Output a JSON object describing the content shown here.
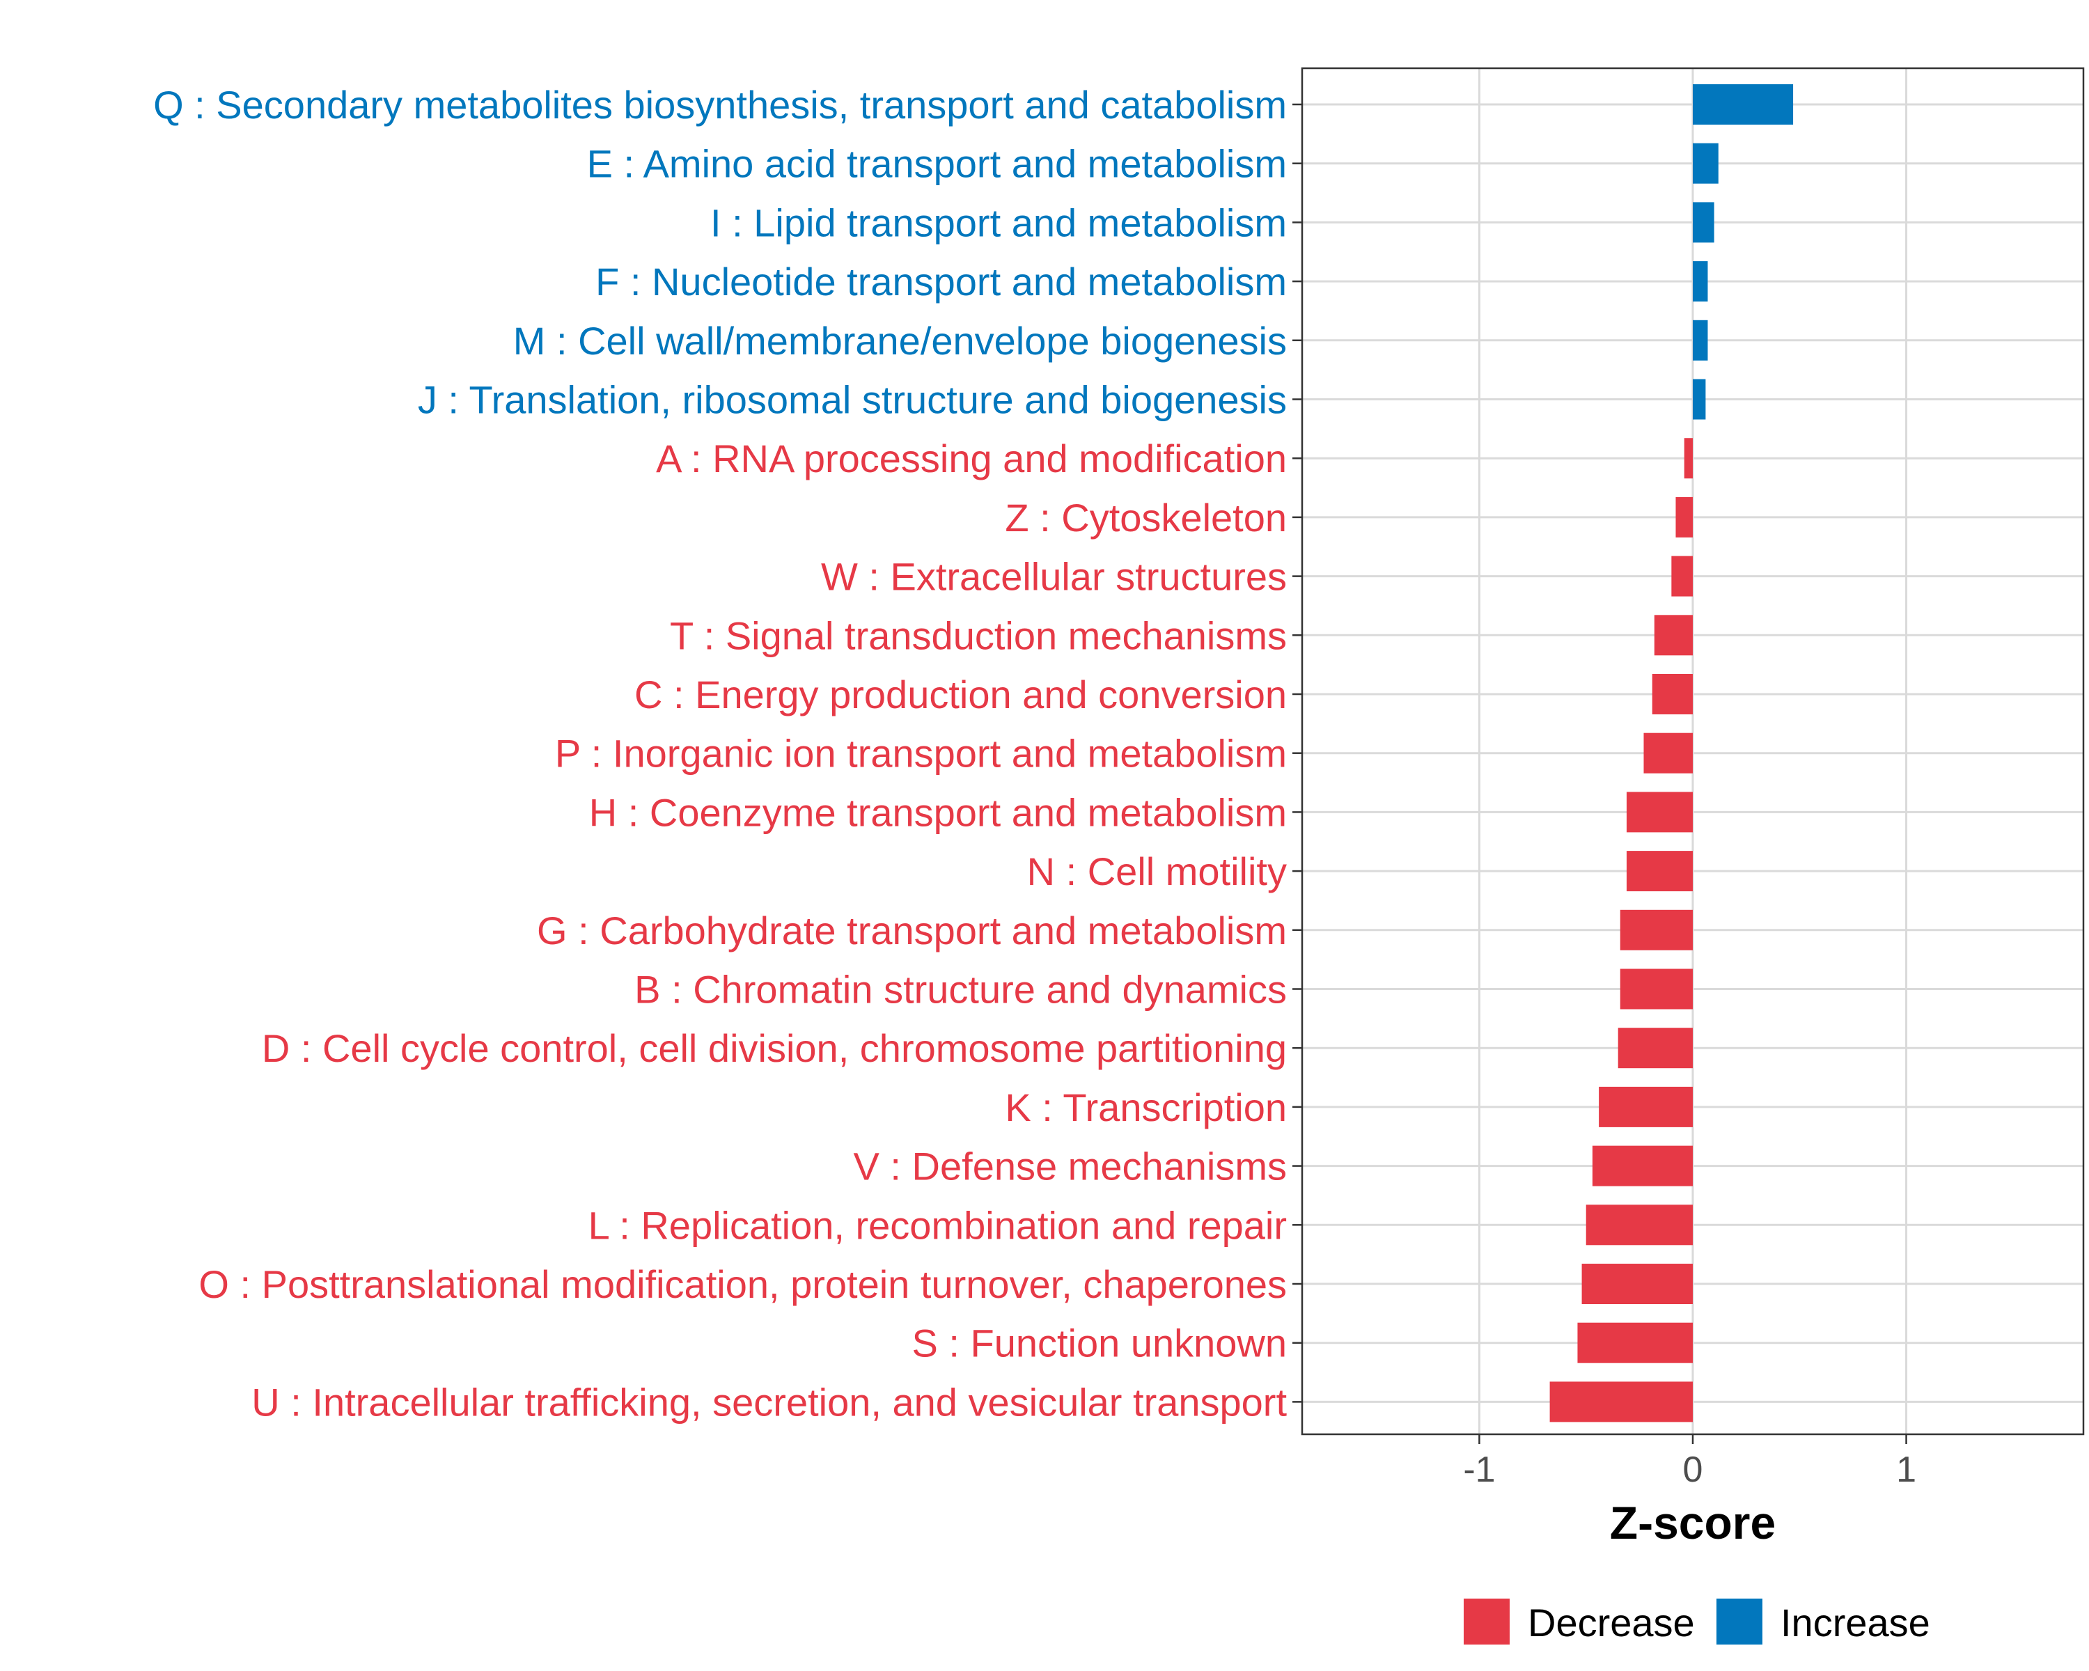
{
  "chart_data": {
    "type": "bar",
    "orientation": "horizontal",
    "title": "",
    "xlabel": "Z-score",
    "ylabel": "",
    "xlim": [
      -1.83,
      1.83
    ],
    "xticks": [
      -1,
      0,
      1
    ],
    "xtick_labels": [
      "-1",
      "0",
      "1"
    ],
    "grid": true,
    "legend_position": "bottom",
    "colors": {
      "Decrease": "#E63946",
      "Increase": "#0277BD"
    },
    "legend": [
      {
        "name": "Decrease",
        "color": "#E63946"
      },
      {
        "name": "Increase",
        "color": "#0277BD"
      }
    ],
    "categories": [
      "Q : Secondary metabolites biosynthesis, transport and catabolism",
      "E : Amino acid transport and metabolism",
      "I : Lipid transport and metabolism",
      "F : Nucleotide transport and metabolism",
      "M : Cell wall/membrane/envelope biogenesis",
      "J : Translation, ribosomal structure and biogenesis",
      "A : RNA processing and modification",
      "Z : Cytoskeleton",
      "W : Extracellular structures",
      "T : Signal transduction mechanisms",
      "C : Energy production and conversion",
      "P : Inorganic ion transport and metabolism",
      "H : Coenzyme transport and metabolism",
      "N : Cell motility",
      "G : Carbohydrate transport and metabolism",
      "B : Chromatin structure and dynamics",
      "D : Cell cycle control, cell division, chromosome partitioning",
      "K : Transcription",
      "V : Defense mechanisms",
      "L : Replication, recombination and repair",
      "O : Posttranslational modification, protein turnover, chaperones",
      "S : Function unknown",
      "U : Intracellular trafficking, secretion, and vesicular transport"
    ],
    "values": [
      0.47,
      0.12,
      0.1,
      0.07,
      0.07,
      0.06,
      -0.04,
      -0.08,
      -0.1,
      -0.18,
      -0.19,
      -0.23,
      -0.31,
      -0.31,
      -0.34,
      -0.34,
      -0.35,
      -0.44,
      -0.47,
      -0.5,
      -0.52,
      -0.54,
      -0.67
    ],
    "groups": [
      "Increase",
      "Increase",
      "Increase",
      "Increase",
      "Increase",
      "Increase",
      "Decrease",
      "Decrease",
      "Decrease",
      "Decrease",
      "Decrease",
      "Decrease",
      "Decrease",
      "Decrease",
      "Decrease",
      "Decrease",
      "Decrease",
      "Decrease",
      "Decrease",
      "Decrease",
      "Decrease",
      "Decrease",
      "Decrease"
    ]
  }
}
